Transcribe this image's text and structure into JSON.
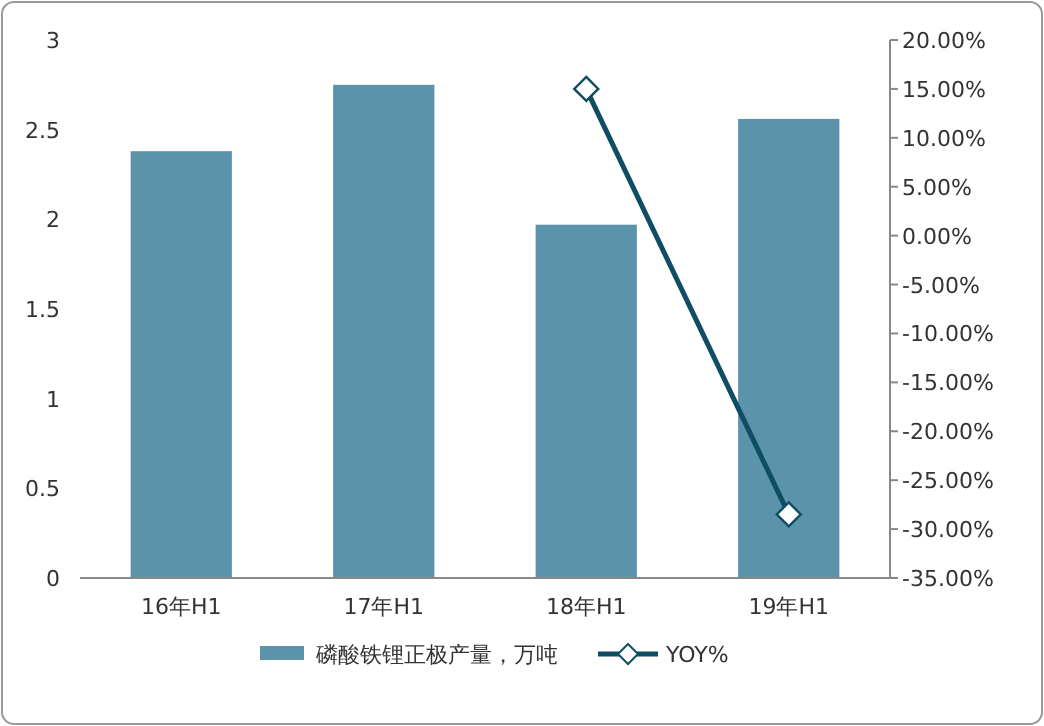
{
  "chart_data": {
    "type": "bar",
    "categories": [
      "16年H1",
      "17年H1",
      "18年H1",
      "19年H1"
    ],
    "series": [
      {
        "name": "磷酸铁锂正极产量，万吨",
        "color": "#5b93aa",
        "values": [
          2.38,
          2.75,
          1.97,
          2.56
        ]
      },
      {
        "name": "YOY%",
        "type": "line",
        "axis": "y2",
        "color": "#0e4d64",
        "marker": "diamond",
        "values": [
          null,
          null,
          15,
          -28.5
        ]
      }
    ],
    "ylim": [
      0,
      3
    ],
    "yticks": [
      0,
      0.5,
      1,
      1.5,
      2,
      2.5,
      3
    ],
    "y2lim": [
      -35,
      20
    ],
    "y2ticks": [
      {
        "value": -35,
        "label": "-35.00%"
      },
      {
        "value": -30,
        "label": "-30.00%"
      },
      {
        "value": -25,
        "label": "-25.00%"
      },
      {
        "value": -20,
        "label": "-20.00%"
      },
      {
        "value": -15,
        "label": "-15.00%"
      },
      {
        "value": -10,
        "label": "-10.00%"
      },
      {
        "value": -5,
        "label": "-5.00%"
      },
      {
        "value": 0,
        "label": "0.00%"
      },
      {
        "value": 5,
        "label": "5.00%"
      },
      {
        "value": 10,
        "label": "10.00%"
      },
      {
        "value": 15,
        "label": "15.00%"
      },
      {
        "value": 20,
        "label": "20.00%"
      }
    ],
    "legend": "bottom",
    "grid": false
  }
}
